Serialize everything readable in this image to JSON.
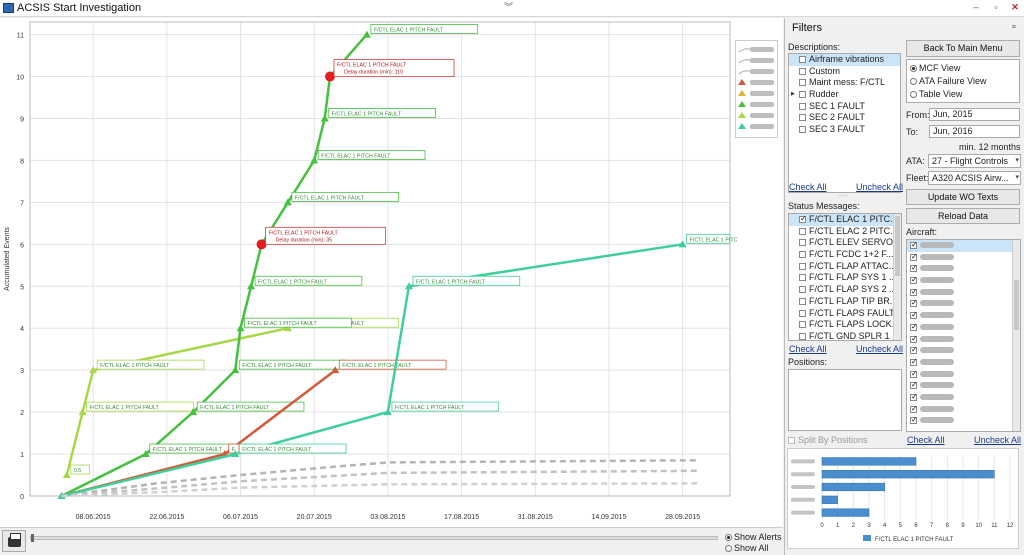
{
  "window": {
    "title": "ACSIS Start Investigation"
  },
  "chart_data": {
    "type": "line",
    "ylabel": "Accumulated Events",
    "ylim": [
      0,
      11.3
    ],
    "yticks": [
      "0",
      "1",
      "2",
      "3",
      "4",
      "5",
      "6",
      "7",
      "8",
      "9",
      "10",
      "11"
    ],
    "xlim": [
      "2015-05-27",
      "2015-10-07"
    ],
    "xticks": [
      {
        "label": "08.06.2015",
        "date": "2015-06-08"
      },
      {
        "label": "22.06.2015",
        "date": "2015-06-22"
      },
      {
        "label": "06.07.2015",
        "date": "2015-07-06"
      },
      {
        "label": "20.07.2015",
        "date": "2015-07-20"
      },
      {
        "label": "03.08.2015",
        "date": "2015-08-03"
      },
      {
        "label": "17.08.2015",
        "date": "2015-08-17"
      },
      {
        "label": "31.08.2015",
        "date": "2015-08-31"
      },
      {
        "label": "14.09.2015",
        "date": "2015-09-14"
      },
      {
        "label": "28.09.2015",
        "date": "2015-09-28"
      }
    ],
    "grid": true,
    "series": [
      {
        "color": "#a8d84a",
        "points": [
          {
            "x": "2015-06-03",
            "y": 0.5,
            "label": "0.5"
          },
          {
            "x": "2015-06-06",
            "y": 2,
            "label": "F/CTL ELAC 1 PITCH FAULT"
          },
          {
            "x": "2015-06-08",
            "y": 3,
            "label": "F/CTL ELAC 1 PITCH FAULT"
          },
          {
            "x": "2015-07-15",
            "y": 4,
            "label": "F/CTL ELAC 1 PITCH FAULT"
          }
        ]
      },
      {
        "color": "#45c13f",
        "points": [
          {
            "x": "2015-06-02",
            "y": 0
          },
          {
            "x": "2015-06-18",
            "y": 1,
            "label": "F/CTL ELAC 1 PITCH FAULT"
          },
          {
            "x": "2015-06-27",
            "y": 2,
            "label": "F/CTL ELAC 1 PITCH FAULT"
          },
          {
            "x": "2015-07-05",
            "y": 3,
            "label": "F/CTL ELAC 1 PITCH FAULT"
          },
          {
            "x": "2015-07-06",
            "y": 4,
            "label": "F/CTL ELAC 1 PITCH FAULT"
          },
          {
            "x": "2015-07-08",
            "y": 5,
            "label": "F/CTL ELAC 1 PITCH FAULT"
          },
          {
            "x": "2015-07-10",
            "y": 6,
            "label": "F/CTL ELAC 1 PITCH FAULT",
            "alert": "Delay duration (min): 35"
          },
          {
            "x": "2015-07-15",
            "y": 7,
            "label": "F/CTL ELAC 1 PITCH FAULT"
          },
          {
            "x": "2015-07-20",
            "y": 8,
            "label": "F/CTL ELAC 1 PITCH FAULT"
          },
          {
            "x": "2015-07-22",
            "y": 9,
            "label": "F/CTL ELAC 1 PITCH FAULT"
          },
          {
            "x": "2015-07-23",
            "y": 10,
            "label": "F/CTL ELAC 1 PITCH FAULT",
            "alert": "Delay duration (min): 110"
          },
          {
            "x": "2015-07-30",
            "y": 11,
            "label": "F/CTL ELAC 1 PITCH FAULT"
          }
        ]
      },
      {
        "color": "#d25a3c",
        "points": [
          {
            "x": "2015-06-02",
            "y": 0
          },
          {
            "x": "2015-07-03",
            "y": 1,
            "label": "F"
          },
          {
            "x": "2015-07-24",
            "y": 3,
            "label": "F/CTL ELAC 1 PITCH FAULT"
          }
        ]
      },
      {
        "color": "#3fcf9a",
        "points": [
          {
            "x": "2015-06-02",
            "y": 0
          },
          {
            "x": "2015-07-05",
            "y": 1,
            "label": "F/CTL ELAC 1 PITCH FAULT"
          },
          {
            "x": "2015-08-03",
            "y": 2,
            "label": "F/CTL ELAC 1 PITCH FAULT"
          },
          {
            "x": "2015-08-07",
            "y": 5,
            "label": "F/CTL ELAC 1 PITCH FAULT"
          },
          {
            "x": "2015-09-28",
            "y": 6,
            "label": "F/CTL ELAC 1 PITC"
          }
        ]
      },
      {
        "color": "#b4b4b4",
        "dash": true,
        "points": [
          {
            "x": "2015-06-02",
            "y": 0
          },
          {
            "x": "2015-06-20",
            "y": 0.3
          },
          {
            "x": "2015-07-06",
            "y": 0.5
          },
          {
            "x": "2015-07-15",
            "y": 0.6
          },
          {
            "x": "2015-07-24",
            "y": 0.7
          },
          {
            "x": "2015-08-03",
            "y": 0.8
          },
          {
            "x": "2015-10-01",
            "y": 0.85
          }
        ]
      },
      {
        "color": "#c2c2c2",
        "dash": true,
        "points": [
          {
            "x": "2015-06-02",
            "y": 0
          },
          {
            "x": "2015-06-22",
            "y": 0.2
          },
          {
            "x": "2015-07-06",
            "y": 0.35
          },
          {
            "x": "2015-07-20",
            "y": 0.45
          },
          {
            "x": "2015-08-03",
            "y": 0.55
          },
          {
            "x": "2015-10-01",
            "y": 0.6
          }
        ]
      },
      {
        "color": "#d0d0d0",
        "dash": true,
        "points": [
          {
            "x": "2015-06-02",
            "y": 0
          },
          {
            "x": "2015-06-22",
            "y": 0.1
          },
          {
            "x": "2015-07-06",
            "y": 0.2
          },
          {
            "x": "2015-08-03",
            "y": 0.28
          },
          {
            "x": "2015-10-01",
            "y": 0.3
          }
        ]
      }
    ]
  },
  "bottom": {
    "show_alerts": "Show Alerts",
    "show_all": "Show All",
    "mode": "alerts"
  },
  "filters": {
    "title": "Filters",
    "descriptions_label": "Descriptions:",
    "descriptions": [
      {
        "label": "Airframe vibrations",
        "checked": false,
        "selected": true
      },
      {
        "label": "Custom",
        "checked": false
      },
      {
        "label": "Maint mess: F/CTL",
        "checked": false
      },
      {
        "label": "Rudder",
        "checked": false,
        "expander": true
      },
      {
        "label": "SEC 1 FAULT",
        "checked": false
      },
      {
        "label": "SEC 2 FAULT",
        "checked": false
      },
      {
        "label": "SEC 3 FAULT",
        "checked": false
      }
    ],
    "check_all": "Check All",
    "uncheck_all": "Uncheck All",
    "status_label": "Status Messages:",
    "status_messages": [
      {
        "label": "F/CTL ELAC 1 PITC...",
        "checked": true,
        "selected": true
      },
      {
        "label": "F/CTL ELAC 2 PITC...",
        "checked": false
      },
      {
        "label": "F/CTL ELEV SERVO...",
        "checked": false
      },
      {
        "label": "F/CTL FCDC 1+2 F...",
        "checked": false
      },
      {
        "label": "F/CTL FLAP ATTAC...",
        "checked": false
      },
      {
        "label": "F/CTL FLAP SYS 1 ...",
        "checked": false
      },
      {
        "label": "F/CTL FLAP SYS 2 ...",
        "checked": false
      },
      {
        "label": "F/CTL FLAP TIP BR...",
        "checked": false
      },
      {
        "label": "F/CTL FLAPS FAULT",
        "checked": false
      },
      {
        "label": "F/CTL FLAPS LOCK...",
        "checked": false
      },
      {
        "label": "F/CTL GND SPLR 1 ...",
        "checked": false
      }
    ],
    "positions_label": "Positions:",
    "split_by_positions": "Split By Positions",
    "back_button": "Back To Main Menu",
    "views": [
      {
        "label": "MCF View",
        "checked": true
      },
      {
        "label": "ATA Failure View",
        "checked": false
      },
      {
        "label": "Table View",
        "checked": false
      }
    ],
    "from_label": "From:",
    "from_value": "Jun, 2015",
    "to_label": "To:",
    "to_value": "Jun, 2016",
    "min_months": "min. 12 months",
    "ata_label": "ATA:",
    "ata_value": "27 - Flight Controls",
    "fleet_label": "Fleet:",
    "fleet_value": "A320 ACSIS Airw...",
    "update_button": "Update WO Texts",
    "reload_button": "Reload Data",
    "aircraft_label": "Aircraft:",
    "aircraft_count": 16
  },
  "mini_chart": {
    "type": "bar",
    "orientation": "horizontal",
    "color": "#4a8ed0",
    "values": [
      6,
      11,
      4,
      1,
      3
    ],
    "xlim": [
      0,
      12
    ],
    "xticks": [
      "0",
      "1",
      "2",
      "3",
      "4",
      "5",
      "6",
      "7",
      "8",
      "9",
      "10",
      "11",
      "12"
    ],
    "legend": "F/CTL ELAC 1 PITCH FAULT"
  }
}
